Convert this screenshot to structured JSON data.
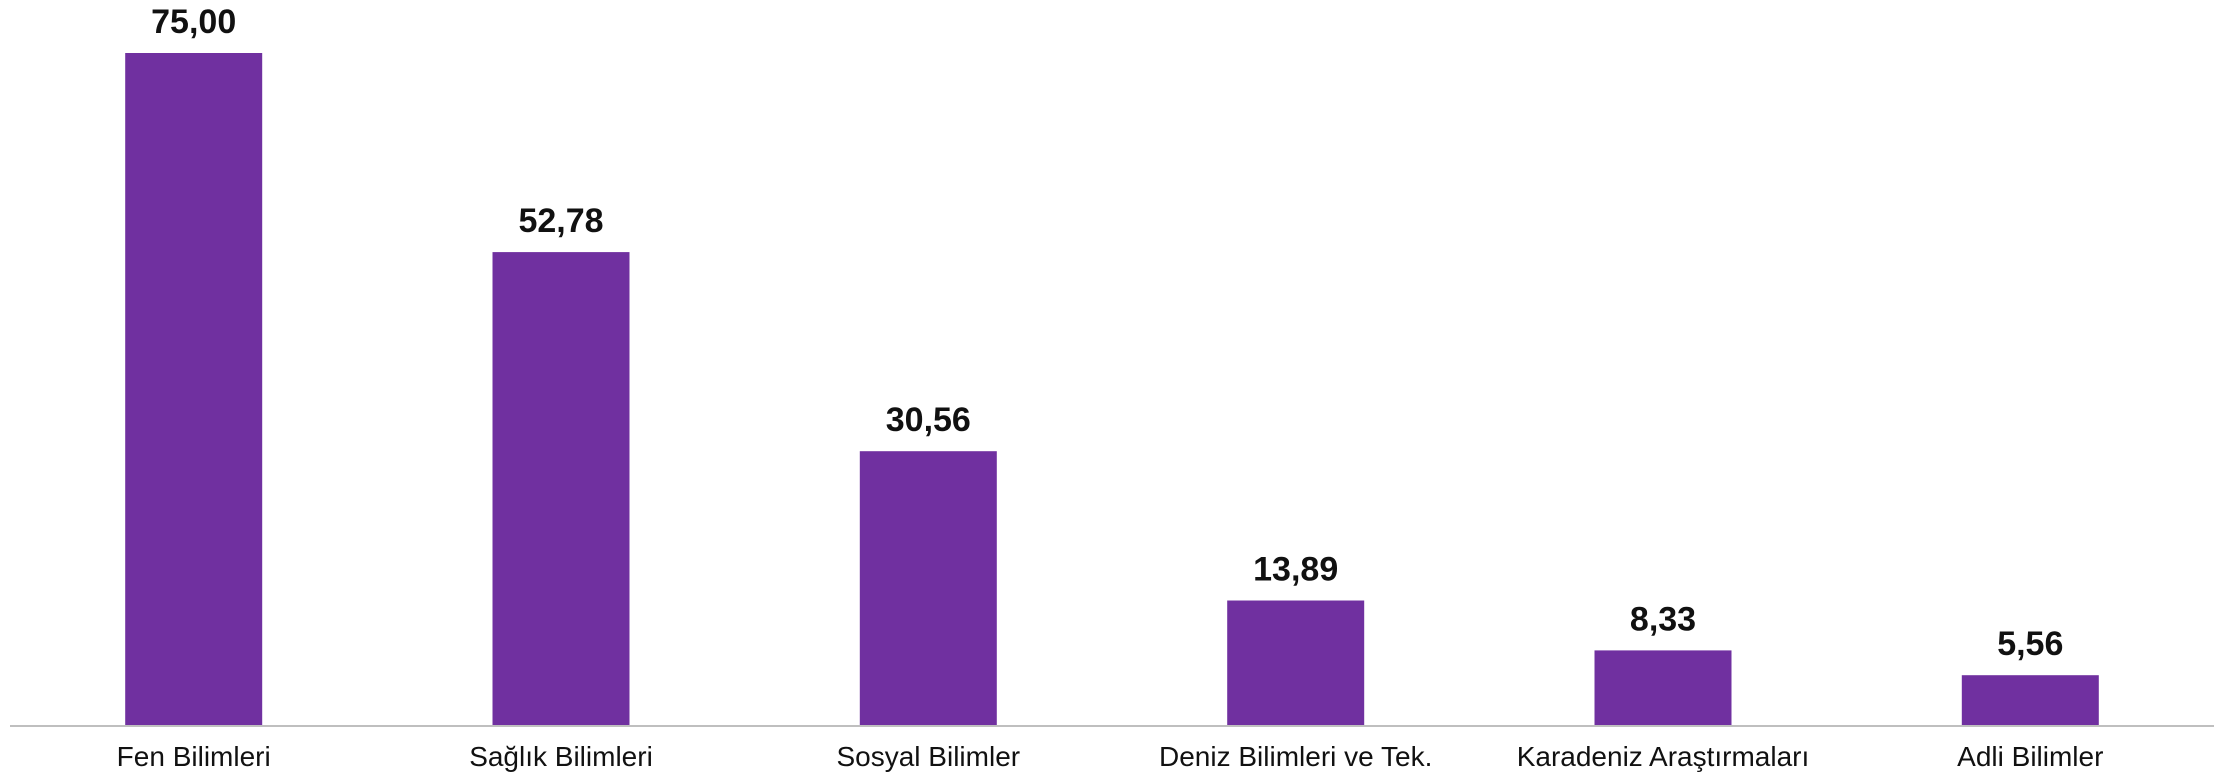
{
  "chart_data": {
    "type": "bar",
    "categories": [
      "Fen Bilimleri",
      "Sağlık Bilimleri",
      "Sosyal Bilimler",
      "Deniz Bilimleri ve Tek.",
      "Karadeniz Araştırmaları",
      "Adli Bilimler"
    ],
    "values": [
      75.0,
      52.78,
      30.56,
      13.89,
      8.33,
      5.56
    ],
    "value_labels": [
      "75,00",
      "52,78",
      "30,56",
      "13,89",
      "8,33",
      "5,56"
    ],
    "title": "",
    "xlabel": "",
    "ylabel": "",
    "ylim": [
      0,
      75
    ],
    "grid": false,
    "legend": "none",
    "colors": {
      "bar": "#7030a0",
      "axis": "#bfbfbf",
      "text": "#111111"
    }
  }
}
